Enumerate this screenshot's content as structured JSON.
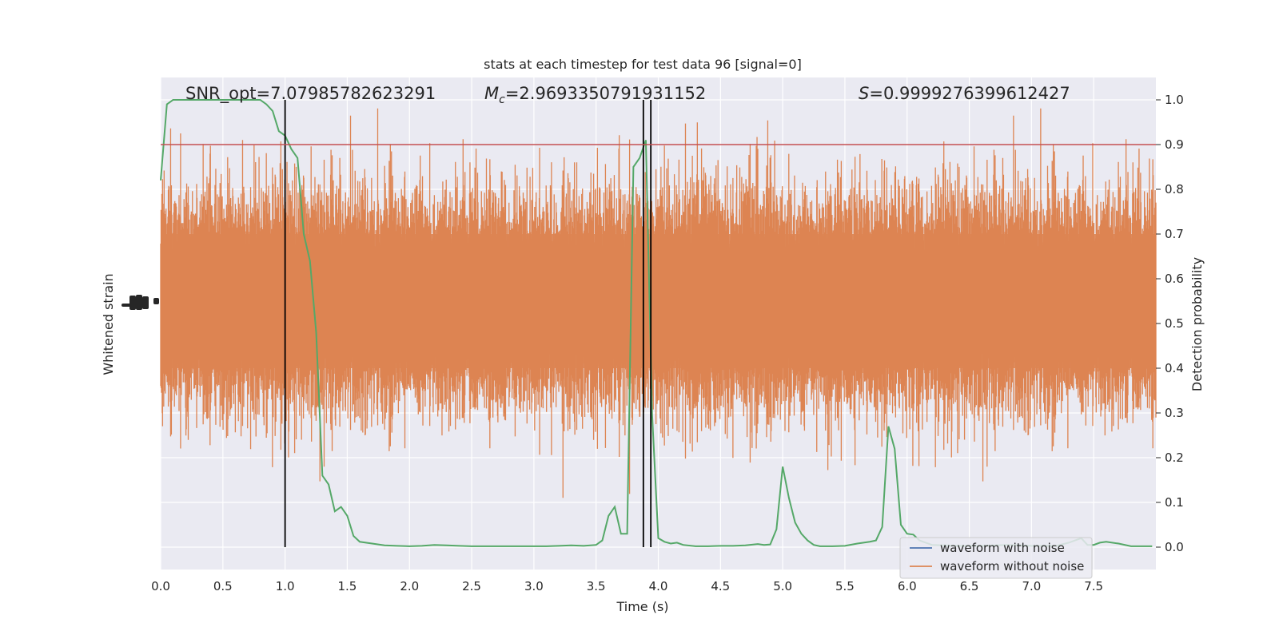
{
  "chart_data": {
    "type": "line",
    "title": "stats at each timestep for test data 96 [signal=0]",
    "xlabel": "Time (s)",
    "ylabel_left": "Whitened strain",
    "ylabel_right": "Detection probability",
    "xlim": [
      0,
      8
    ],
    "ylim_right": [
      -0.05,
      1.05
    ],
    "x_ticks": [
      "0.0",
      "0.5",
      "1.0",
      "1.5",
      "2.0",
      "2.5",
      "3.0",
      "3.5",
      "4.0",
      "4.5",
      "5.0",
      "5.5",
      "6.0",
      "6.5",
      "7.0",
      "7.5"
    ],
    "y_ticks_right": [
      "0.0",
      "0.1",
      "0.2",
      "0.3",
      "0.4",
      "0.5",
      "0.6",
      "0.7",
      "0.8",
      "0.9",
      "1.0"
    ],
    "grid": true,
    "legend_position": "lower-right",
    "annotations": {
      "snr": "SNR_opt=7.07985782623291",
      "mc_symbol": "M",
      "mc_sub": "c",
      "mc_value": "=2.9693350791931152",
      "s_symbol": "S",
      "s_value": "=0.9999276399612427"
    },
    "threshold": {
      "y": 0.9,
      "color": "#c44e52"
    },
    "vertical_lines": [
      1.0,
      3.88,
      3.94
    ],
    "series": [
      {
        "name": "waveform with noise",
        "color": "#4c72b0",
        "values": []
      },
      {
        "name": "waveform without noise",
        "color": "#dd8452",
        "render": "noise-band"
      },
      {
        "color": "#55a868",
        "x": [
          0.0,
          0.05,
          0.1,
          0.15,
          0.2,
          0.3,
          0.4,
          0.5,
          0.6,
          0.7,
          0.8,
          0.85,
          0.9,
          0.95,
          1.0,
          1.05,
          1.1,
          1.15,
          1.2,
          1.25,
          1.3,
          1.35,
          1.4,
          1.45,
          1.5,
          1.55,
          1.6,
          1.7,
          1.8,
          1.9,
          2.0,
          2.1,
          2.2,
          2.3,
          2.4,
          2.5,
          2.6,
          2.7,
          2.8,
          2.9,
          3.0,
          3.1,
          3.2,
          3.3,
          3.4,
          3.5,
          3.55,
          3.6,
          3.65,
          3.7,
          3.75,
          3.8,
          3.85,
          3.9,
          3.95,
          4.0,
          4.05,
          4.1,
          4.15,
          4.2,
          4.3,
          4.4,
          4.5,
          4.6,
          4.7,
          4.8,
          4.85,
          4.9,
          4.95,
          5.0,
          5.05,
          5.1,
          5.15,
          5.2,
          5.25,
          5.3,
          5.4,
          5.5,
          5.6,
          5.7,
          5.75,
          5.8,
          5.85,
          5.9,
          5.95,
          6.0,
          6.05,
          6.1,
          6.15,
          6.2,
          6.3,
          6.4,
          6.5,
          6.6,
          6.7,
          6.8,
          6.9,
          7.0,
          7.1,
          7.2,
          7.3,
          7.35,
          7.4,
          7.45,
          7.5,
          7.55,
          7.6,
          7.7,
          7.8,
          7.9,
          7.97
        ],
        "values": [
          0.82,
          0.99,
          1.0,
          1.0,
          1.0,
          1.0,
          1.0,
          1.0,
          1.0,
          1.0,
          1.0,
          0.99,
          0.975,
          0.93,
          0.92,
          0.89,
          0.87,
          0.7,
          0.64,
          0.48,
          0.16,
          0.14,
          0.08,
          0.09,
          0.07,
          0.025,
          0.012,
          0.008,
          0.004,
          0.003,
          0.002,
          0.003,
          0.005,
          0.004,
          0.003,
          0.002,
          0.002,
          0.002,
          0.002,
          0.002,
          0.002,
          0.002,
          0.003,
          0.004,
          0.003,
          0.005,
          0.015,
          0.07,
          0.09,
          0.03,
          0.03,
          0.85,
          0.87,
          0.91,
          0.3,
          0.02,
          0.012,
          0.008,
          0.01,
          0.005,
          0.002,
          0.002,
          0.003,
          0.003,
          0.004,
          0.007,
          0.005,
          0.006,
          0.04,
          0.18,
          0.11,
          0.055,
          0.03,
          0.015,
          0.005,
          0.002,
          0.002,
          0.003,
          0.008,
          0.012,
          0.015,
          0.045,
          0.27,
          0.22,
          0.05,
          0.03,
          0.028,
          0.015,
          0.01,
          0.005,
          0.004,
          0.003,
          0.003,
          0.003,
          0.004,
          0.005,
          0.004,
          0.003,
          0.003,
          0.003,
          0.01,
          0.015,
          0.02,
          0.005,
          0.005,
          0.01,
          0.012,
          0.008,
          0.002,
          0.002,
          0.002
        ]
      }
    ]
  }
}
